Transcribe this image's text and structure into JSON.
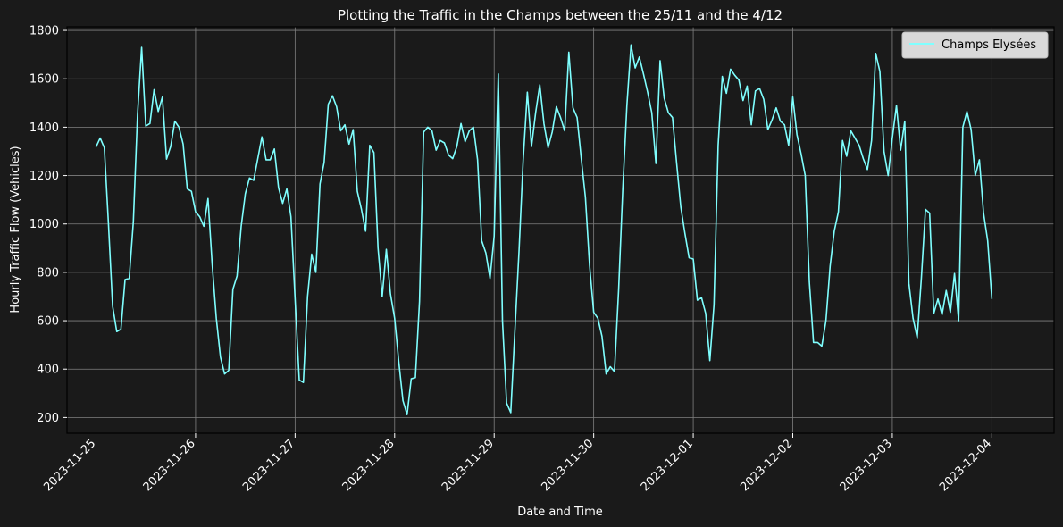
{
  "chart_data": {
    "type": "line",
    "title": "Plotting the Traffic in the Champs between the 25/11 and the 4/12",
    "xlabel": "Date and Time",
    "ylabel": "Hourly Traffic Flow (Vehicles)",
    "xlim": [
      "2023-11-24T17:00",
      "2023-12-04T15:00"
    ],
    "ylim": [
      135,
      1815
    ],
    "yticks": [
      200,
      400,
      600,
      800,
      1000,
      1200,
      1400,
      1600,
      1800
    ],
    "xticks": [
      "2023-11-25",
      "2023-11-26",
      "2023-11-27",
      "2023-11-28",
      "2023-11-29",
      "2023-11-30",
      "2023-12-01",
      "2023-12-02",
      "2023-12-03",
      "2023-12-04"
    ],
    "grid": true,
    "legend_position": "top-right",
    "colors": {
      "background": "#1a1a1a",
      "line": "#7fffff",
      "grid": "#808080",
      "axis": "#000000"
    },
    "series": [
      {
        "name": "Champs Elysées",
        "x_start": "2023-11-25T00:00",
        "x_step": "1 hour",
        "values": [
          1318,
          1355,
          1315,
          1000,
          660,
          555,
          565,
          770,
          775,
          1010,
          1450,
          1730,
          1405,
          1415,
          1555,
          1465,
          1525,
          1268,
          1320,
          1425,
          1400,
          1330,
          1145,
          1135,
          1050,
          1030,
          990,
          1105,
          835,
          610,
          450,
          380,
          395,
          730,
          785,
          990,
          1125,
          1190,
          1180,
          1270,
          1360,
          1265,
          1265,
          1310,
          1150,
          1085,
          1145,
          1030,
          690,
          355,
          345,
          700,
          875,
          800,
          1165,
          1255,
          1495,
          1530,
          1485,
          1385,
          1410,
          1330,
          1390,
          1135,
          1060,
          970,
          1325,
          1295,
          900,
          700,
          895,
          710,
          610,
          430,
          270,
          212,
          360,
          365,
          680,
          1380,
          1400,
          1385,
          1305,
          1345,
          1335,
          1285,
          1270,
          1320,
          1415,
          1340,
          1385,
          1400,
          1265,
          930,
          880,
          775,
          950,
          1620,
          600,
          260,
          220,
          560,
          890,
          1265,
          1545,
          1320,
          1460,
          1575,
          1415,
          1315,
          1380,
          1485,
          1440,
          1385,
          1710,
          1480,
          1440,
          1270,
          1110,
          830,
          635,
          610,
          535,
          380,
          410,
          390,
          725,
          1140,
          1490,
          1740,
          1645,
          1690,
          1620,
          1545,
          1460,
          1250,
          1675,
          1520,
          1460,
          1440,
          1250,
          1070,
          960,
          860,
          855,
          685,
          695,
          630,
          435,
          665,
          1325,
          1610,
          1540,
          1640,
          1615,
          1595,
          1510,
          1570,
          1410,
          1550,
          1560,
          1515,
          1390,
          1430,
          1480,
          1425,
          1410,
          1325,
          1525,
          1370,
          1290,
          1200,
          760,
          510,
          510,
          495,
          600,
          825,
          970,
          1050,
          1345,
          1280,
          1385,
          1355,
          1325,
          1270,
          1225,
          1345,
          1705,
          1630,
          1300,
          1200,
          1355,
          1490,
          1305,
          1425,
          755,
          610,
          530,
          775,
          1060,
          1045,
          630,
          690,
          625,
          725,
          635,
          795,
          600,
          1400,
          1465,
          1390,
          1200,
          1265,
          1045,
          930,
          690
        ]
      }
    ]
  }
}
